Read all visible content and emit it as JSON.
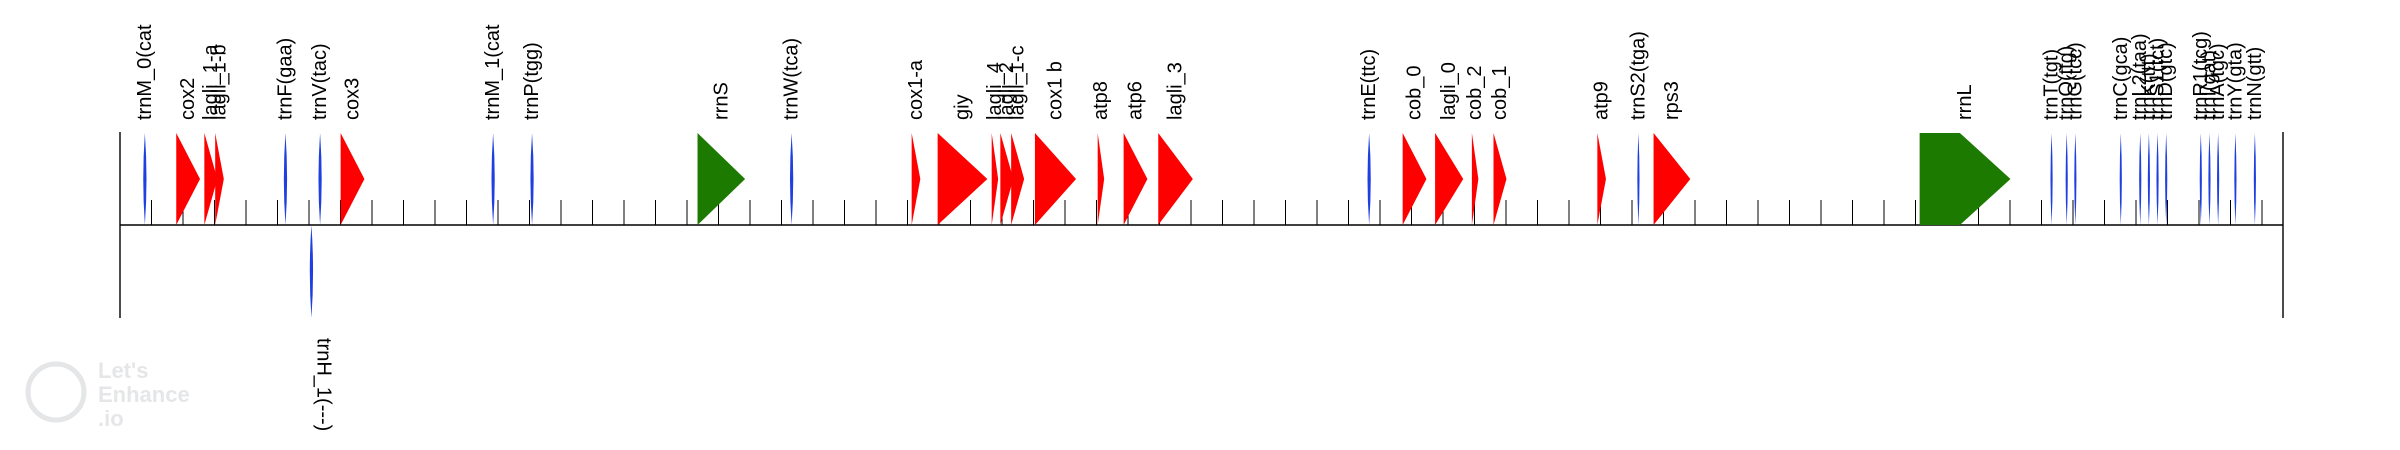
{
  "colors": {
    "cds": "#ff0000",
    "rrna": "#1d7a00",
    "trna": "#1f3fe0",
    "axis": "#000000"
  },
  "map": {
    "length": 100
  },
  "features": [
    {
      "name": "trnM_0(cat",
      "type": "trna",
      "strand": "+",
      "start": 1.0,
      "end": 1.3
    },
    {
      "name": "cox2",
      "type": "cds",
      "strand": "+",
      "start": 2.6,
      "end": 3.7
    },
    {
      "name": "lagli_1-a",
      "type": "cds",
      "strand": "+",
      "start": 3.9,
      "end": 4.5
    },
    {
      "name": "lagli_1-b",
      "type": "cds",
      "strand": "+",
      "start": 4.4,
      "end": 4.8
    },
    {
      "name": "trnF(gaa)",
      "type": "trna",
      "strand": "+",
      "start": 7.5,
      "end": 7.8
    },
    {
      "name": "trnH_1(---)",
      "type": "trna",
      "strand": "-",
      "start": 8.7,
      "end": 9.0
    },
    {
      "name": "trnV(tac)",
      "type": "trna",
      "strand": "+",
      "start": 9.1,
      "end": 9.4
    },
    {
      "name": "cox3",
      "type": "cds",
      "strand": "+",
      "start": 10.2,
      "end": 11.3
    },
    {
      "name": "trnM_1(cat",
      "type": "trna",
      "strand": "+",
      "start": 17.1,
      "end": 17.4
    },
    {
      "name": "trnP(tgg)",
      "type": "trna",
      "strand": "+",
      "start": 18.9,
      "end": 19.2
    },
    {
      "name": "rrnS",
      "type": "rrna",
      "strand": "+",
      "start": 26.7,
      "end": 28.9
    },
    {
      "name": "trnW(tca)",
      "type": "trna",
      "strand": "+",
      "start": 30.9,
      "end": 31.2
    },
    {
      "name": "cox1-a",
      "type": "cds",
      "strand": "+",
      "start": 36.6,
      "end": 37.0
    },
    {
      "name": "giy",
      "type": "cds",
      "strand": "+",
      "start": 37.8,
      "end": 40.1
    },
    {
      "name": "lagli_4",
      "type": "cds",
      "strand": "+",
      "start": 40.3,
      "end": 40.6
    },
    {
      "name": "lagli_2",
      "type": "cds",
      "strand": "+",
      "start": 40.7,
      "end": 41.3
    },
    {
      "name": "lagli_1-c",
      "type": "cds",
      "strand": "+",
      "start": 41.2,
      "end": 41.8
    },
    {
      "name": "cox1 b",
      "type": "cds",
      "strand": "+",
      "start": 42.3,
      "end": 44.2
    },
    {
      "name": "atp8",
      "type": "cds",
      "strand": "+",
      "start": 45.2,
      "end": 45.5
    },
    {
      "name": "atp6",
      "type": "cds",
      "strand": "+",
      "start": 46.4,
      "end": 47.5
    },
    {
      "name": "lagli_3",
      "type": "cds",
      "strand": "+",
      "start": 48.0,
      "end": 49.6
    },
    {
      "name": "trnE(ttc)",
      "type": "trna",
      "strand": "+",
      "start": 57.6,
      "end": 57.9
    },
    {
      "name": "cob_0",
      "type": "cds",
      "strand": "+",
      "start": 59.3,
      "end": 60.4
    },
    {
      "name": "lagli_0",
      "type": "cds",
      "strand": "+",
      "start": 60.8,
      "end": 62.1
    },
    {
      "name": "cob_2",
      "type": "cds",
      "strand": "+",
      "start": 62.5,
      "end": 62.8
    },
    {
      "name": "cob_1",
      "type": "cds",
      "strand": "+",
      "start": 63.5,
      "end": 64.1
    },
    {
      "name": "atp9",
      "type": "cds",
      "strand": "+",
      "start": 68.3,
      "end": 68.7
    },
    {
      "name": "trnS2(tga)",
      "type": "trna",
      "strand": "+",
      "start": 70.1,
      "end": 70.3
    },
    {
      "name": "rps3",
      "type": "cds",
      "strand": "+",
      "start": 70.9,
      "end": 72.6
    },
    {
      "name": "rrnL",
      "type": "rrna",
      "strand": "+",
      "start": 83.2,
      "end": 87.4
    },
    {
      "name": "trnT(tgt)",
      "type": "trna",
      "strand": "+",
      "start": 89.2,
      "end": 89.4
    },
    {
      "name": "trnQ(ttg)",
      "type": "trna",
      "strand": "+",
      "start": 89.9,
      "end": 90.1
    },
    {
      "name": "trnG(tcc)",
      "type": "trna",
      "strand": "+",
      "start": 90.3,
      "end": 90.5
    },
    {
      "name": "trnC(gca)",
      "type": "trna",
      "strand": "+",
      "start": 92.4,
      "end": 92.6
    },
    {
      "name": "trnL2(taa)",
      "type": "trna",
      "strand": "+",
      "start": 93.3,
      "end": 93.5
    },
    {
      "name": "trnK(ttt)",
      "type": "trna",
      "strand": "+",
      "start": 93.7,
      "end": 93.9
    },
    {
      "name": "trnS1(tct)",
      "type": "trna",
      "strand": "+",
      "start": 94.1,
      "end": 94.3
    },
    {
      "name": "trnD(gtc)",
      "type": "trna",
      "strand": "+",
      "start": 94.5,
      "end": 94.7
    },
    {
      "name": "trnR1(tcg)",
      "type": "trna",
      "strand": "+",
      "start": 96.1,
      "end": 96.3
    },
    {
      "name": "trnI(gat)",
      "type": "trna",
      "strand": "+",
      "start": 96.5,
      "end": 96.7
    },
    {
      "name": "trnA(tgc)",
      "type": "trna",
      "strand": "+",
      "start": 96.9,
      "end": 97.1
    },
    {
      "name": "trnY(gta)",
      "type": "trna",
      "strand": "+",
      "start": 97.7,
      "end": 97.9
    },
    {
      "name": "trnN(gtt)",
      "type": "trna",
      "strand": "+",
      "start": 98.6,
      "end": 98.8
    }
  ],
  "watermark": {
    "line1": "Let's",
    "line2": "Enhance",
    "line3": ".io"
  }
}
